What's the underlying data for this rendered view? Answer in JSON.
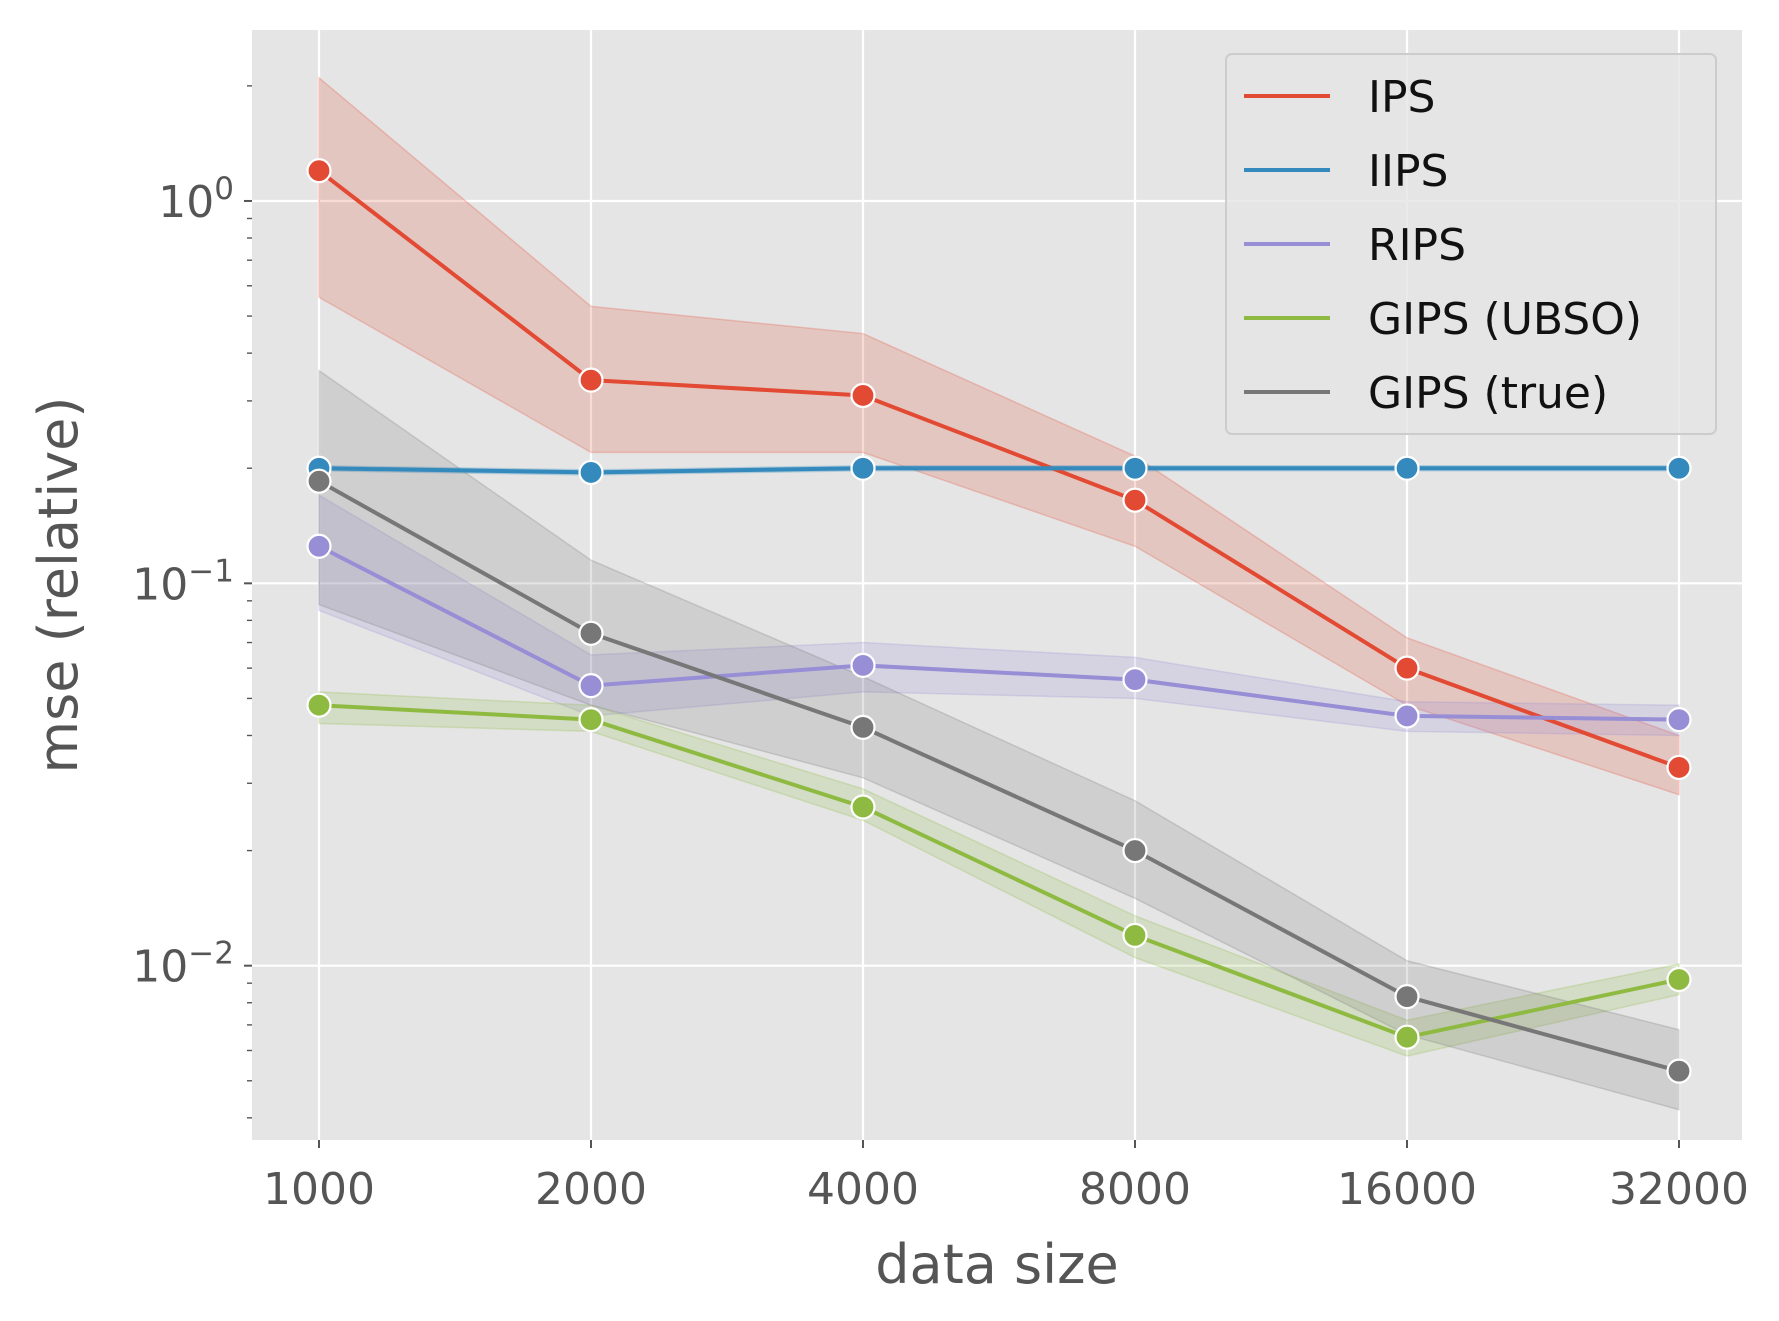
{
  "chart_data": {
    "type": "line",
    "xlabel": "data size",
    "ylabel": "mse (relative)",
    "x": [
      1000,
      2000,
      4000,
      8000,
      16000,
      32000
    ],
    "x_tick_labels": [
      "1000",
      "2000",
      "4000",
      "8000",
      "16000",
      "32000"
    ],
    "x_scale": "log2",
    "y_scale": "log",
    "ylim": [
      0.0035,
      2.8
    ],
    "y_ticks": [
      {
        "value": 1,
        "base": "10",
        "exp": "0"
      },
      {
        "value": 0.1,
        "base": "10",
        "exp": "−1"
      },
      {
        "value": 0.01,
        "base": "10",
        "exp": "−2"
      }
    ],
    "grid": true,
    "legend_position": "top-right",
    "series": [
      {
        "name": "IPS",
        "color": "#e24a33",
        "values": [
          1.2,
          0.34,
          0.31,
          0.165,
          0.06,
          0.033
        ],
        "lower": [
          0.56,
          0.22,
          0.22,
          0.125,
          0.048,
          0.028
        ],
        "upper": [
          2.1,
          0.53,
          0.45,
          0.215,
          0.072,
          0.04
        ]
      },
      {
        "name": "IIPS",
        "color": "#348abd",
        "values": [
          0.2,
          0.195,
          0.2,
          0.2,
          0.2,
          0.2
        ],
        "lower": [
          0.197,
          0.192,
          0.197,
          0.197,
          0.197,
          0.197
        ],
        "upper": [
          0.203,
          0.198,
          0.203,
          0.203,
          0.203,
          0.203
        ]
      },
      {
        "name": "RIPS",
        "color": "#988ed5",
        "values": [
          0.125,
          0.054,
          0.061,
          0.056,
          0.045,
          0.044
        ],
        "lower": [
          0.085,
          0.045,
          0.052,
          0.05,
          0.041,
          0.04
        ],
        "upper": [
          0.17,
          0.065,
          0.07,
          0.064,
          0.049,
          0.048
        ]
      },
      {
        "name": "GIPS (UBSO)",
        "color": "#8eba42",
        "values": [
          0.048,
          0.044,
          0.026,
          0.012,
          0.0065,
          0.0092
        ],
        "lower": [
          0.043,
          0.041,
          0.024,
          0.0105,
          0.0058,
          0.0084
        ],
        "upper": [
          0.052,
          0.048,
          0.029,
          0.0135,
          0.0072,
          0.0101
        ]
      },
      {
        "name": "GIPS (true)",
        "color": "#777777",
        "values": [
          0.185,
          0.074,
          0.042,
          0.02,
          0.0083,
          0.0053
        ],
        "lower": [
          0.088,
          0.048,
          0.031,
          0.015,
          0.0066,
          0.0042
        ],
        "upper": [
          0.36,
          0.115,
          0.057,
          0.027,
          0.0103,
          0.0068
        ]
      }
    ]
  }
}
